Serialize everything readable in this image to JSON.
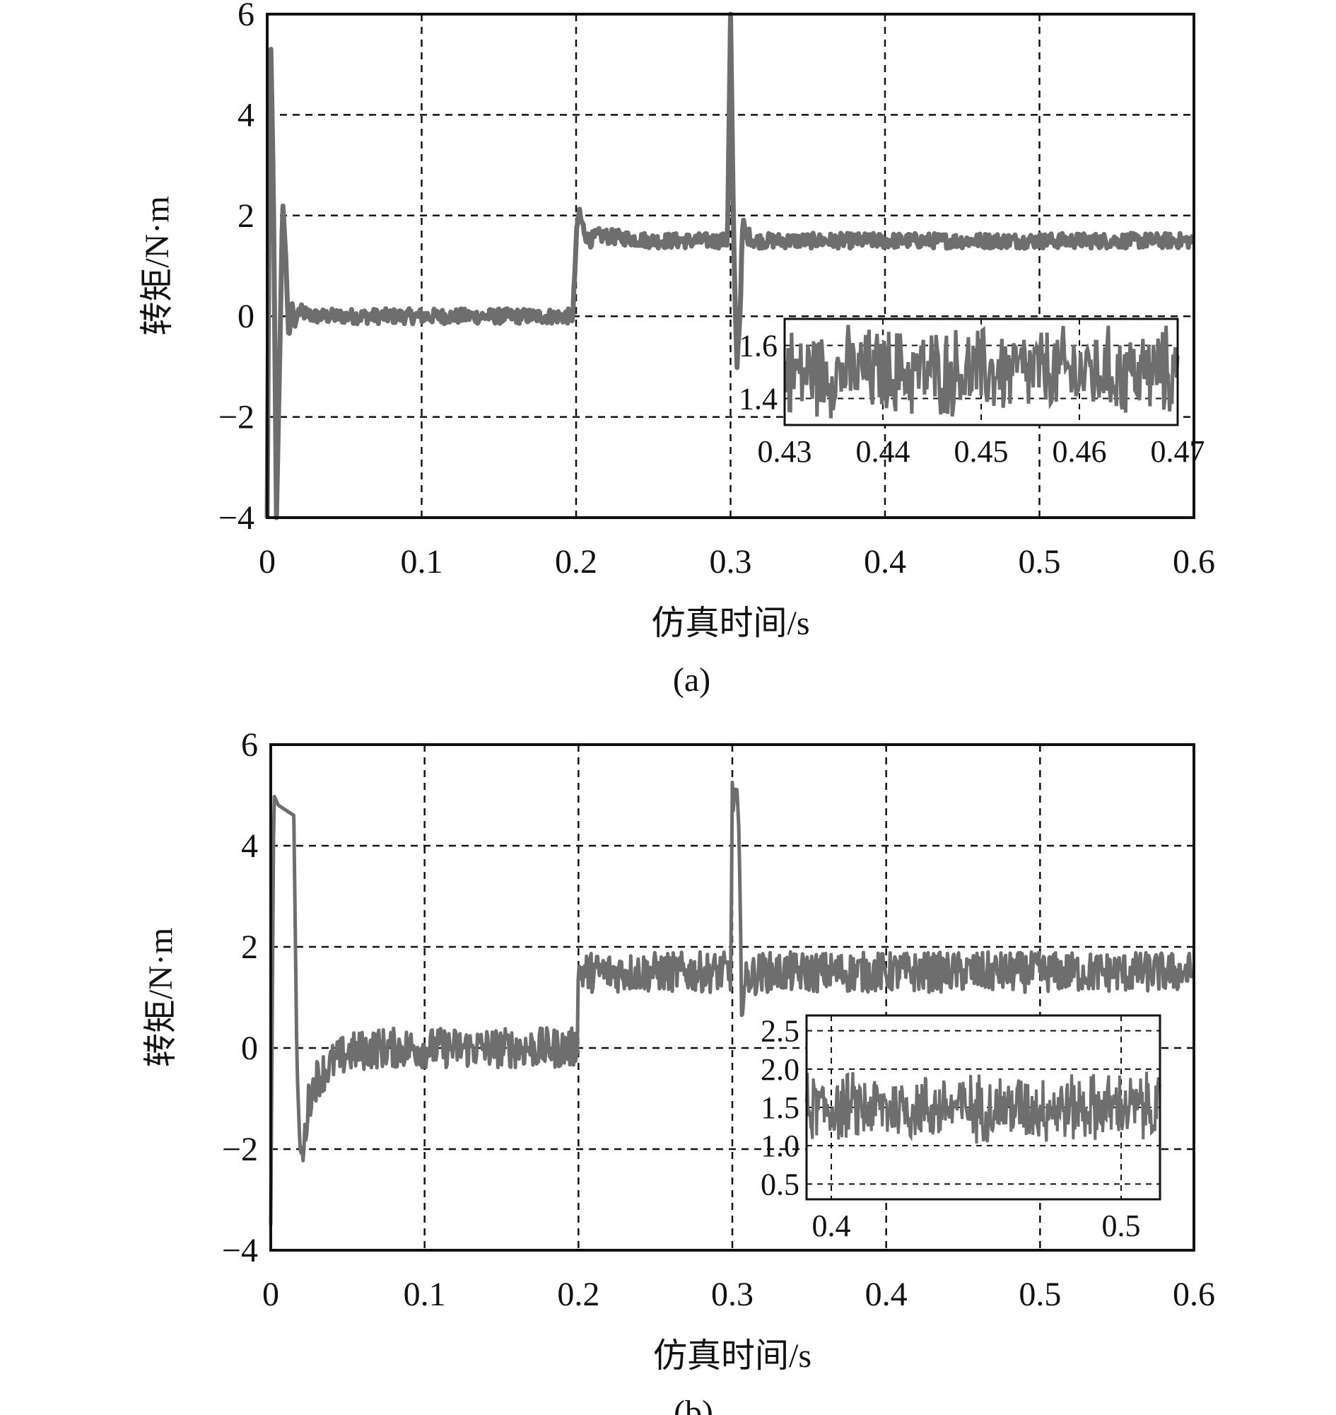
{
  "colors": {
    "signal": "#6e6e6e",
    "frame": "#111111",
    "grid": "#111111",
    "background": "#ffffff"
  },
  "chart_data": [
    {
      "type": "line",
      "caption": "(a)",
      "xlabel": "仿真时间/s",
      "ylabel": "转矩/N·m",
      "xlim": [
        0,
        0.6
      ],
      "ylim": [
        -4,
        6
      ],
      "xticks": [
        "0",
        "0.1",
        "0.2",
        "0.3",
        "0.4",
        "0.5",
        "0.6"
      ],
      "yticks": [
        "−4",
        "−2",
        "0",
        "2",
        "4",
        "6"
      ],
      "grid": true,
      "series": [
        {
          "x": [
            0,
            0.002,
            0.004,
            0.006,
            0.008,
            0.01,
            0.012,
            0.014,
            0.016,
            0.018,
            0.02,
            0.025,
            0.03,
            0.04,
            0.05,
            0.1,
            0.15,
            0.198,
            0.2,
            0.202,
            0.204,
            0.208,
            0.215,
            0.25,
            0.298,
            0.3,
            0.302,
            0.304,
            0.306,
            0.308,
            0.31,
            0.312,
            0.315,
            0.32,
            0.4,
            0.5,
            0.6
          ],
          "y": [
            -4,
            6,
            2.5,
            -4,
            -1,
            2.3,
            1.2,
            -0.5,
            0.3,
            -0.2,
            0.1,
            0.05,
            0,
            0,
            0,
            0,
            0,
            0,
            1.5,
            2.1,
            1.8,
            1.5,
            1.6,
            1.5,
            1.5,
            6,
            1.5,
            -1,
            0,
            1.9,
            1.5,
            1.6,
            1.5,
            1.5,
            1.5,
            1.5,
            1.5
          ],
          "ripple_amplitude": 0.15
        }
      ],
      "inset": {
        "x": [
          0.43,
          0.47
        ],
        "xticks": [
          "0.43",
          "0.44",
          "0.45",
          "0.46",
          "0.47"
        ],
        "yticks": [
          "1.4",
          "1.6"
        ],
        "mean": 1.5,
        "ripple_amplitude": 0.15
      }
    },
    {
      "type": "line",
      "caption": "(b)",
      "xlabel": "仿真时间/s",
      "ylabel": "转矩/N·m",
      "xlim": [
        0,
        0.6
      ],
      "ylim": [
        -4,
        6
      ],
      "xticks": [
        "0",
        "0.1",
        "0.2",
        "0.3",
        "0.4",
        "0.5",
        "0.6"
      ],
      "yticks": [
        "−4",
        "−2",
        "0",
        "2",
        "4",
        "6"
      ],
      "grid": true,
      "series": [
        {
          "x": [
            0,
            0.002,
            0.005,
            0.01,
            0.015,
            0.017,
            0.019,
            0.021,
            0.023,
            0.025,
            0.03,
            0.04,
            0.05,
            0.07,
            0.1,
            0.15,
            0.199,
            0.2,
            0.25,
            0.299,
            0.3,
            0.302,
            0.304,
            0.306,
            0.308,
            0.31,
            0.32,
            0.4,
            0.5,
            0.6
          ],
          "y": [
            -3.5,
            5,
            4.8,
            4.7,
            4.6,
            -0.3,
            -2,
            -2.2,
            -1.5,
            -1,
            -0.6,
            -0.3,
            -0.1,
            0,
            0,
            0,
            0,
            1.5,
            1.5,
            1.5,
            4.9,
            5,
            4.5,
            1,
            1.2,
            1.4,
            1.5,
            1.5,
            1.5,
            1.5
          ],
          "ripple_amplitude": 0.4
        }
      ],
      "inset": {
        "x": [
          0.4,
          0.5
        ],
        "xticks": [
          "0.4",
          "0.5"
        ],
        "yticks": [
          "0.5",
          "1.0",
          "1.5",
          "2.0",
          "2.5"
        ],
        "mean": 1.5,
        "ripple_amplitude": 0.4
      }
    }
  ]
}
